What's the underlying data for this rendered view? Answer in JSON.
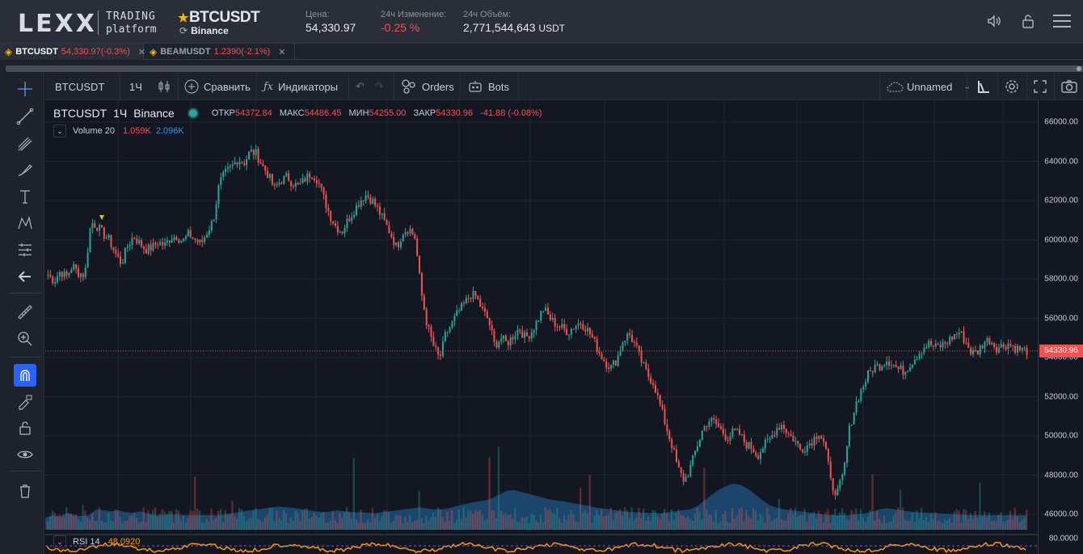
{
  "header": {
    "logo": "LEXX",
    "brand_line1": "TRADING",
    "brand_line2": "platform",
    "pair": "BTCUSDT",
    "exchange": "Binance",
    "price_label": "Цена:",
    "price_value": "54,330.97",
    "change_label": "24ч Изменение:",
    "change_value": "-0.25 %",
    "volume_label": "24ч Объём:",
    "volume_value": "2,771,544,643",
    "volume_unit": "USDT"
  },
  "tabs": [
    {
      "symbol": "BTCUSDT",
      "change": "54,330.97(-0.3%)"
    },
    {
      "symbol": "BEAMUSDT",
      "change": "1.2390(-2.1%)"
    }
  ],
  "toolbar": {
    "symbol": "BTCUSDT",
    "interval": "1Ч",
    "compare": "Сравнить",
    "indicators": "Индикаторы",
    "orders": "Orders",
    "bots": "Bots",
    "layout_name": "Unnamed"
  },
  "legend": {
    "symbol": "BTCUSDT",
    "interval": "1Ч",
    "exchange": "Binance",
    "open_label": "ОТКР",
    "open_value": "54372.84",
    "high_label": "МАКС",
    "high_value": "54486.45",
    "low_label": "МИН",
    "low_value": "54255.00",
    "close_label": "ЗАКР",
    "close_value": "54330.96",
    "change": "-41.88 (-0.08%)",
    "volume_name": "Volume 20",
    "volume_v1": "1.059K",
    "volume_v2": "2.096K",
    "rsi_name": "RSI 14",
    "rsi_value": "48.0920"
  },
  "price_scale": {
    "ticks": [
      "66000.00",
      "64000.00",
      "62000.00",
      "60000.00",
      "58000.00",
      "56000.00",
      "54000.00",
      "52000.00",
      "50000.00",
      "48000.00",
      "46000.00"
    ],
    "current": "54330.96",
    "rsi_tick": "80.0000"
  },
  "colors": {
    "up": "#26a69a",
    "down": "#ef5350",
    "volume": "#2962ff",
    "rsi": "#ff9800",
    "accent": "#f0b90b"
  },
  "chart_data": {
    "type": "candlestick",
    "ylim": [
      45500,
      66500
    ],
    "close_path": [
      58200,
      57900,
      58400,
      58100,
      58700,
      58300,
      58200,
      60900,
      60700,
      60300,
      60000,
      59300,
      58800,
      59700,
      60200,
      59800,
      59500,
      59600,
      59900,
      59700,
      60100,
      60200,
      59900,
      60300,
      60000,
      59800,
      60400,
      61000,
      62900,
      63400,
      63700,
      64100,
      63900,
      64500,
      64400,
      63800,
      63300,
      62600,
      63000,
      63200,
      62900,
      62700,
      63100,
      63400,
      63100,
      62200,
      61300,
      60700,
      60400,
      61000,
      61500,
      62000,
      62300,
      62000,
      61500,
      60900,
      60300,
      59600,
      60400,
      60600,
      60100,
      57300,
      55600,
      54600,
      53900,
      55200,
      55700,
      56300,
      56700,
      57200,
      57100,
      56400,
      55900,
      54600,
      55000,
      54700,
      55100,
      55500,
      55000,
      55300,
      55900,
      56500,
      56000,
      55700,
      55500,
      55300,
      55600,
      55800,
      55500,
      55000,
      54300,
      53800,
      53500,
      53900,
      54900,
      55200,
      54600,
      53800,
      53100,
      52700,
      51600,
      50500,
      49500,
      48300,
      47700,
      48400,
      49400,
      50300,
      50800,
      50700,
      50300,
      49900,
      50200,
      50100,
      49600,
      49400,
      49000,
      49500,
      49800,
      50400,
      50600,
      50100,
      49800,
      49300,
      49500,
      49800,
      50200,
      49600,
      47500,
      47100,
      48000,
      50400,
      51600,
      52400,
      53100,
      53500,
      53600,
      53900,
      53700,
      53400,
      53300,
      53700,
      54100,
      54500,
      54700,
      54500,
      54600,
      54800,
      55100,
      55300,
      54800,
      54200,
      54300,
      54800,
      54900,
      54500,
      54600,
      54700,
      54500,
      54400,
      54330
    ],
    "volume_area": [
      0.25,
      0.3,
      0.28,
      0.35,
      0.3,
      0.28,
      0.3,
      0.42,
      0.4,
      0.38,
      0.4,
      0.36,
      0.35,
      0.38,
      0.33,
      0.3,
      0.3,
      0.32,
      0.31,
      0.3,
      0.3,
      0.3,
      0.3,
      0.3,
      0.3,
      0.33,
      0.35,
      0.38,
      0.4,
      0.42,
      0.44,
      0.46,
      0.48,
      0.46,
      0.45,
      0.42,
      0.4,
      0.38,
      0.36,
      0.38,
      0.4,
      0.38,
      0.36,
      0.36,
      0.35,
      0.34,
      0.36,
      0.38,
      0.4,
      0.42,
      0.44,
      0.46,
      0.44,
      0.42,
      0.42,
      0.44,
      0.48,
      0.52,
      0.55,
      0.58,
      0.6,
      0.65,
      0.72,
      0.8,
      0.82,
      0.78,
      0.74,
      0.7,
      0.66,
      0.62,
      0.6,
      0.58,
      0.55,
      0.52,
      0.5,
      0.46,
      0.44,
      0.42,
      0.4,
      0.38,
      0.36,
      0.36,
      0.35,
      0.35,
      0.34,
      0.36,
      0.38,
      0.4,
      0.42,
      0.48,
      0.6,
      0.72,
      0.82,
      0.9,
      0.95,
      0.92,
      0.84,
      0.72,
      0.6,
      0.5,
      0.45,
      0.42,
      0.4,
      0.38,
      0.36,
      0.34,
      0.32,
      0.3,
      0.3,
      0.3,
      0.3,
      0.32,
      0.34,
      0.38,
      0.42,
      0.44,
      0.42,
      0.4,
      0.38,
      0.36,
      0.35,
      0.35,
      0.34,
      0.33,
      0.32,
      0.31,
      0.3,
      0.3,
      0.3,
      0.3,
      0.3,
      0.3,
      0.3,
      0.3,
      0.3
    ]
  }
}
